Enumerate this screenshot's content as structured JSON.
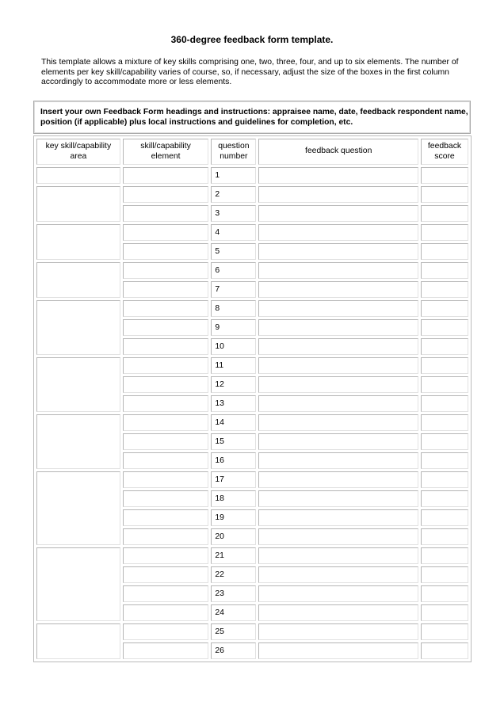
{
  "title": "360-degree feedback form template.",
  "intro": "This template allows a mixture of key skills comprising one, two, three, four, and up to six elements. The number of elements per key skill/capability varies of course, so, if necessary, adjust the size of the boxes in the first column accordingly to accommodate more or less elements.",
  "instructions": "Insert your own Feedback Form headings and instructions: appraisee name, date, feedback respondent name, position (if applicable) plus local instructions and guidelines for completion, etc.",
  "table": {
    "headers": [
      "key skill/capability area",
      "skill/capability element",
      "question number",
      "feedback question",
      "feedback score"
    ],
    "groups": [
      [
        1
      ],
      [
        2,
        3
      ],
      [
        4,
        5
      ],
      [
        6,
        7
      ],
      [
        8,
        9,
        10
      ],
      [
        11,
        12,
        13
      ],
      [
        14,
        15,
        16
      ],
      [
        17,
        18,
        19,
        20
      ],
      [
        21,
        22,
        23,
        24
      ],
      [
        25,
        26
      ]
    ]
  }
}
